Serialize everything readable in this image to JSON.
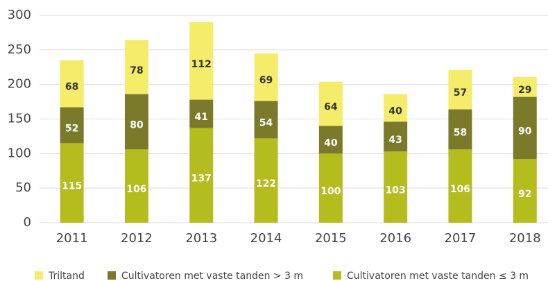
{
  "chart_data": {
    "type": "stacked_bar",
    "categories": [
      "2011",
      "2012",
      "2013",
      "2014",
      "2015",
      "2016",
      "2017",
      "2018"
    ],
    "series": [
      {
        "name": "Triltand",
        "color": "#f5ec6a",
        "values": [
          68,
          78,
          112,
          69,
          64,
          40,
          57,
          29
        ]
      },
      {
        "name": "Cultivatoren met vaste tanden > 3 m",
        "color": "#7b7a2b",
        "values": [
          52,
          80,
          41,
          54,
          40,
          43,
          58,
          90
        ]
      },
      {
        "name": "Cultivatoren met vaste tanden ≤ 3 m",
        "color": "#b4bc1e",
        "values": [
          115,
          106,
          137,
          122,
          100,
          103,
          106,
          92
        ]
      }
    ],
    "ylim": [
      0,
      300
    ],
    "yticks": [
      0,
      50,
      100,
      150,
      200,
      250,
      300
    ],
    "grid": true,
    "legend": "bottom"
  }
}
